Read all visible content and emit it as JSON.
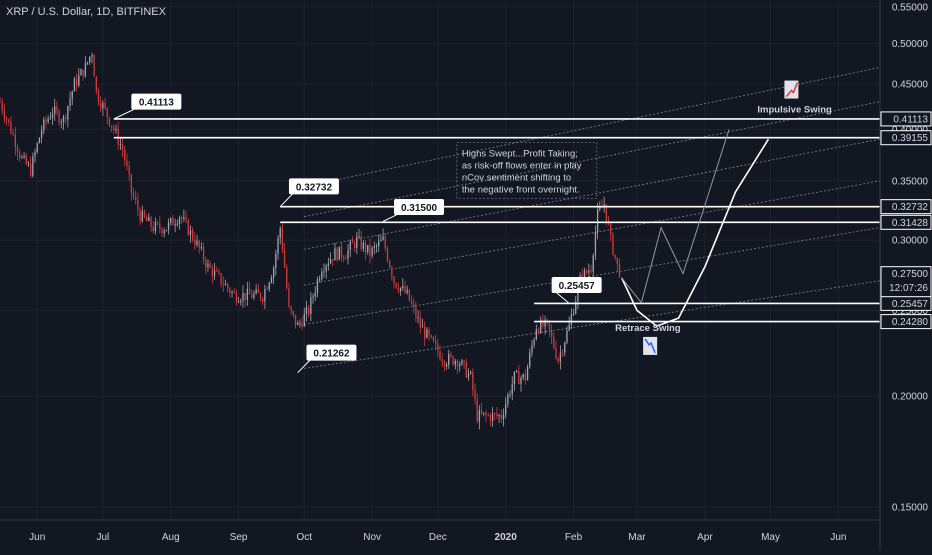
{
  "chart_data": {
    "type": "candlestick",
    "title": "XRP / U.S. Dollar, 1D, BITFINEX",
    "y_scale": "log",
    "ylim": [
      0.145,
      0.56
    ],
    "x_range": [
      "2019-05-15",
      "2020-06-20"
    ],
    "x_ticks": [
      {
        "date": "2019-06-01",
        "label": "Jun"
      },
      {
        "date": "2019-07-01",
        "label": "Jul"
      },
      {
        "date": "2019-08-01",
        "label": "Aug"
      },
      {
        "date": "2019-09-01",
        "label": "Sep"
      },
      {
        "date": "2019-10-01",
        "label": "Oct"
      },
      {
        "date": "2019-11-01",
        "label": "Nov"
      },
      {
        "date": "2019-12-01",
        "label": "Dec"
      },
      {
        "date": "2020-01-01",
        "label": "2020"
      },
      {
        "date": "2020-02-01",
        "label": "Feb"
      },
      {
        "date": "2020-03-01",
        "label": "Mar"
      },
      {
        "date": "2020-04-01",
        "label": "Apr"
      },
      {
        "date": "2020-05-01",
        "label": "May"
      },
      {
        "date": "2020-06-01",
        "label": "Jun"
      }
    ],
    "y_ticks": [
      0.15,
      0.2,
      0.25,
      0.3,
      0.35,
      0.4,
      0.45,
      0.5,
      0.55
    ],
    "y_tick_labels": [
      "0.15000",
      "0.20000",
      "0.25000",
      "0.30000",
      "0.35000",
      "0.40000",
      "0.45000",
      "0.50000",
      "0.55000"
    ],
    "price_path": [
      [
        "2019-05-15",
        0.43
      ],
      [
        "2019-05-20",
        0.4
      ],
      [
        "2019-05-25",
        0.37
      ],
      [
        "2019-05-29",
        0.36
      ],
      [
        "2019-06-03",
        0.4
      ],
      [
        "2019-06-08",
        0.42
      ],
      [
        "2019-06-13",
        0.41
      ],
      [
        "2019-06-18",
        0.45
      ],
      [
        "2019-06-23",
        0.47
      ],
      [
        "2019-06-26",
        0.49
      ],
      [
        "2019-06-28",
        0.44
      ],
      [
        "2019-07-02",
        0.42
      ],
      [
        "2019-07-06",
        0.4
      ],
      [
        "2019-07-10",
        0.38
      ],
      [
        "2019-07-14",
        0.34
      ],
      [
        "2019-07-18",
        0.32
      ],
      [
        "2019-07-24",
        0.31
      ],
      [
        "2019-07-30",
        0.31
      ],
      [
        "2019-08-05",
        0.32
      ],
      [
        "2019-08-12",
        0.3
      ],
      [
        "2019-08-18",
        0.28
      ],
      [
        "2019-08-24",
        0.27
      ],
      [
        "2019-08-30",
        0.26
      ],
      [
        "2019-09-06",
        0.26
      ],
      [
        "2019-09-12",
        0.26
      ],
      [
        "2019-09-17",
        0.28
      ],
      [
        "2019-09-20",
        0.31
      ],
      [
        "2019-09-24",
        0.25
      ],
      [
        "2019-09-28",
        0.24
      ],
      [
        "2019-10-03",
        0.25
      ],
      [
        "2019-10-09",
        0.28
      ],
      [
        "2019-10-15",
        0.29
      ],
      [
        "2019-10-20",
        0.29
      ],
      [
        "2019-10-25",
        0.3
      ],
      [
        "2019-10-31",
        0.29
      ],
      [
        "2019-11-06",
        0.3
      ],
      [
        "2019-11-11",
        0.27
      ],
      [
        "2019-11-17",
        0.26
      ],
      [
        "2019-11-23",
        0.24
      ],
      [
        "2019-11-28",
        0.23
      ],
      [
        "2019-12-04",
        0.22
      ],
      [
        "2019-12-10",
        0.22
      ],
      [
        "2019-12-16",
        0.21
      ],
      [
        "2019-12-19",
        0.19
      ],
      [
        "2019-12-24",
        0.19
      ],
      [
        "2019-12-30",
        0.19
      ],
      [
        "2020-01-05",
        0.21
      ],
      [
        "2020-01-10",
        0.21
      ],
      [
        "2020-01-15",
        0.24
      ],
      [
        "2020-01-20",
        0.24
      ],
      [
        "2020-01-25",
        0.22
      ],
      [
        "2020-01-30",
        0.24
      ],
      [
        "2020-02-04",
        0.27
      ],
      [
        "2020-02-09",
        0.28
      ],
      [
        "2020-02-12",
        0.32
      ],
      [
        "2020-02-15",
        0.33
      ],
      [
        "2020-02-18",
        0.3
      ],
      [
        "2020-02-21",
        0.28
      ],
      [
        "2020-02-23",
        0.275
      ]
    ],
    "horizontal_levels": [
      {
        "label": "0.41113",
        "value": 0.41113,
        "from": "2019-07-06"
      },
      {
        "label": "0.39155",
        "value": 0.39155,
        "from": "2019-07-06"
      },
      {
        "label": "0.32732",
        "value": 0.32732,
        "from": "2019-09-20"
      },
      {
        "label": "0.31428",
        "value": 0.31428,
        "from": "2019-09-20"
      },
      {
        "label": "0.25457",
        "value": 0.25457,
        "from": "2020-01-14"
      },
      {
        "label": "0.24280",
        "value": 0.2428,
        "from": "2020-01-14"
      }
    ],
    "current_price": {
      "label": "0.27500",
      "value": 0.275,
      "countdown": "12:07:26"
    },
    "callouts": [
      {
        "label": "0.41113",
        "at": [
          "2019-07-06",
          0.41113
        ],
        "box": [
          "2019-07-14",
          0.43
        ]
      },
      {
        "label": "0.32732",
        "at": [
          "2019-09-20",
          0.32732
        ],
        "box": [
          "2019-09-24",
          0.345
        ]
      },
      {
        "label": "0.31500",
        "at": [
          "2019-11-06",
          0.315
        ],
        "box": [
          "2019-11-11",
          0.327
        ]
      },
      {
        "label": "0.21262",
        "at": [
          "2019-09-28",
          0.21262
        ],
        "box": [
          "2019-10-02",
          0.224
        ]
      },
      {
        "label": "0.25457",
        "at": [
          "2020-01-30",
          0.25457
        ],
        "box": [
          "2020-01-22",
          0.267
        ]
      }
    ],
    "annotation_text": [
      "Highs Swept...Profit Taking;",
      "as risk-off flows enter in play",
      "nCov sentiment shifting to",
      "the negative front overnight."
    ],
    "annotation_anchor": [
      "2019-12-12",
      0.373
    ],
    "impulsive_label": "Impulsive Swing",
    "retrace_label": "Retrace Swing",
    "channel": {
      "start": "2019-10-01",
      "end": "2020-06-20",
      "base_start": 0.215,
      "step_start": 0.026,
      "base_end": 0.27,
      "step_end": 0.04,
      "lines": 6
    },
    "projection_path": [
      [
        "2020-02-23",
        0.272
      ],
      [
        "2020-03-01",
        0.25
      ],
      [
        "2020-03-10",
        0.24
      ],
      [
        "2020-03-20",
        0.245
      ],
      [
        "2020-04-01",
        0.28
      ],
      [
        "2020-04-15",
        0.34
      ],
      [
        "2020-04-30",
        0.39
      ]
    ],
    "projection_zigzag": [
      [
        "2020-02-23",
        0.272
      ],
      [
        "2020-03-03",
        0.255
      ],
      [
        "2020-03-12",
        0.31
      ],
      [
        "2020-03-22",
        0.275
      ],
      [
        "2020-04-12",
        0.4
      ]
    ],
    "colors": {
      "background": "#131722",
      "axis_text": "#d1d4dc",
      "grid": "#1e222d",
      "level": "#ffffff",
      "up_candle": "#a3a6af",
      "down_candle": "#d33b3b"
    }
  }
}
